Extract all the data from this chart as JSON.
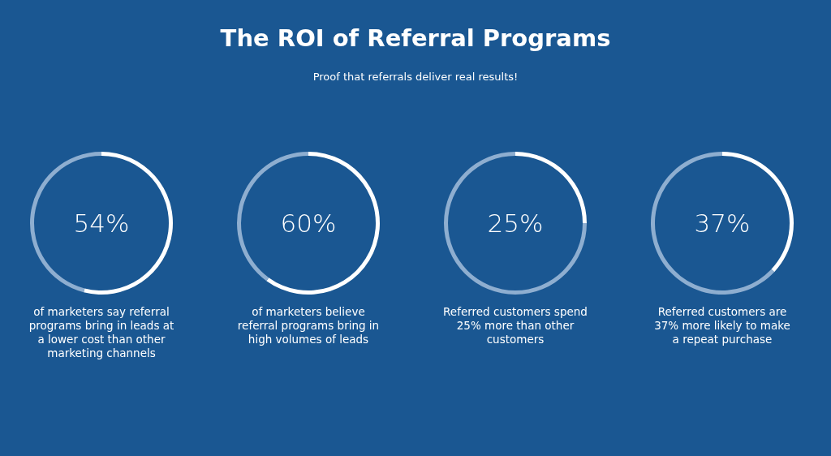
{
  "chart_data": [
    {
      "type": "donut",
      "title": "The ROI of Referral Programs",
      "subtitle": "Proof that referrals deliver real results!",
      "categories": [
        null,
        null
      ],
      "values": [
        54,
        46
      ],
      "colors": [
        "#ffffff",
        "#8eaed0"
      ],
      "annotations": [
        "54%",
        "of marketers say referral programs bring in leads at a lower cost than other marketing channels"
      ]
    },
    {
      "type": "donut",
      "categories": [
        null,
        null
      ],
      "values": [
        60,
        40
      ],
      "colors": [
        "#ffffff",
        "#8eaed0"
      ],
      "annotations": [
        "60%",
        "of marketers believe referral programs bring in high volumes of leads"
      ]
    },
    {
      "type": "donut",
      "categories": [
        null,
        null
      ],
      "values": [
        25,
        75
      ],
      "colors": [
        "#ffffff",
        "#8eaed0"
      ],
      "annotations": [
        "25%",
        "Referred customers spend 25% more than other customers"
      ]
    },
    {
      "type": "donut",
      "categories": [
        null,
        null
      ],
      "values": [
        37,
        63
      ],
      "colors": [
        "#ffffff",
        "#8eaed0"
      ],
      "annotations": [
        "37%",
        "Referred customers are 37% more likely to make a repeat purchase"
      ]
    }
  ]
}
